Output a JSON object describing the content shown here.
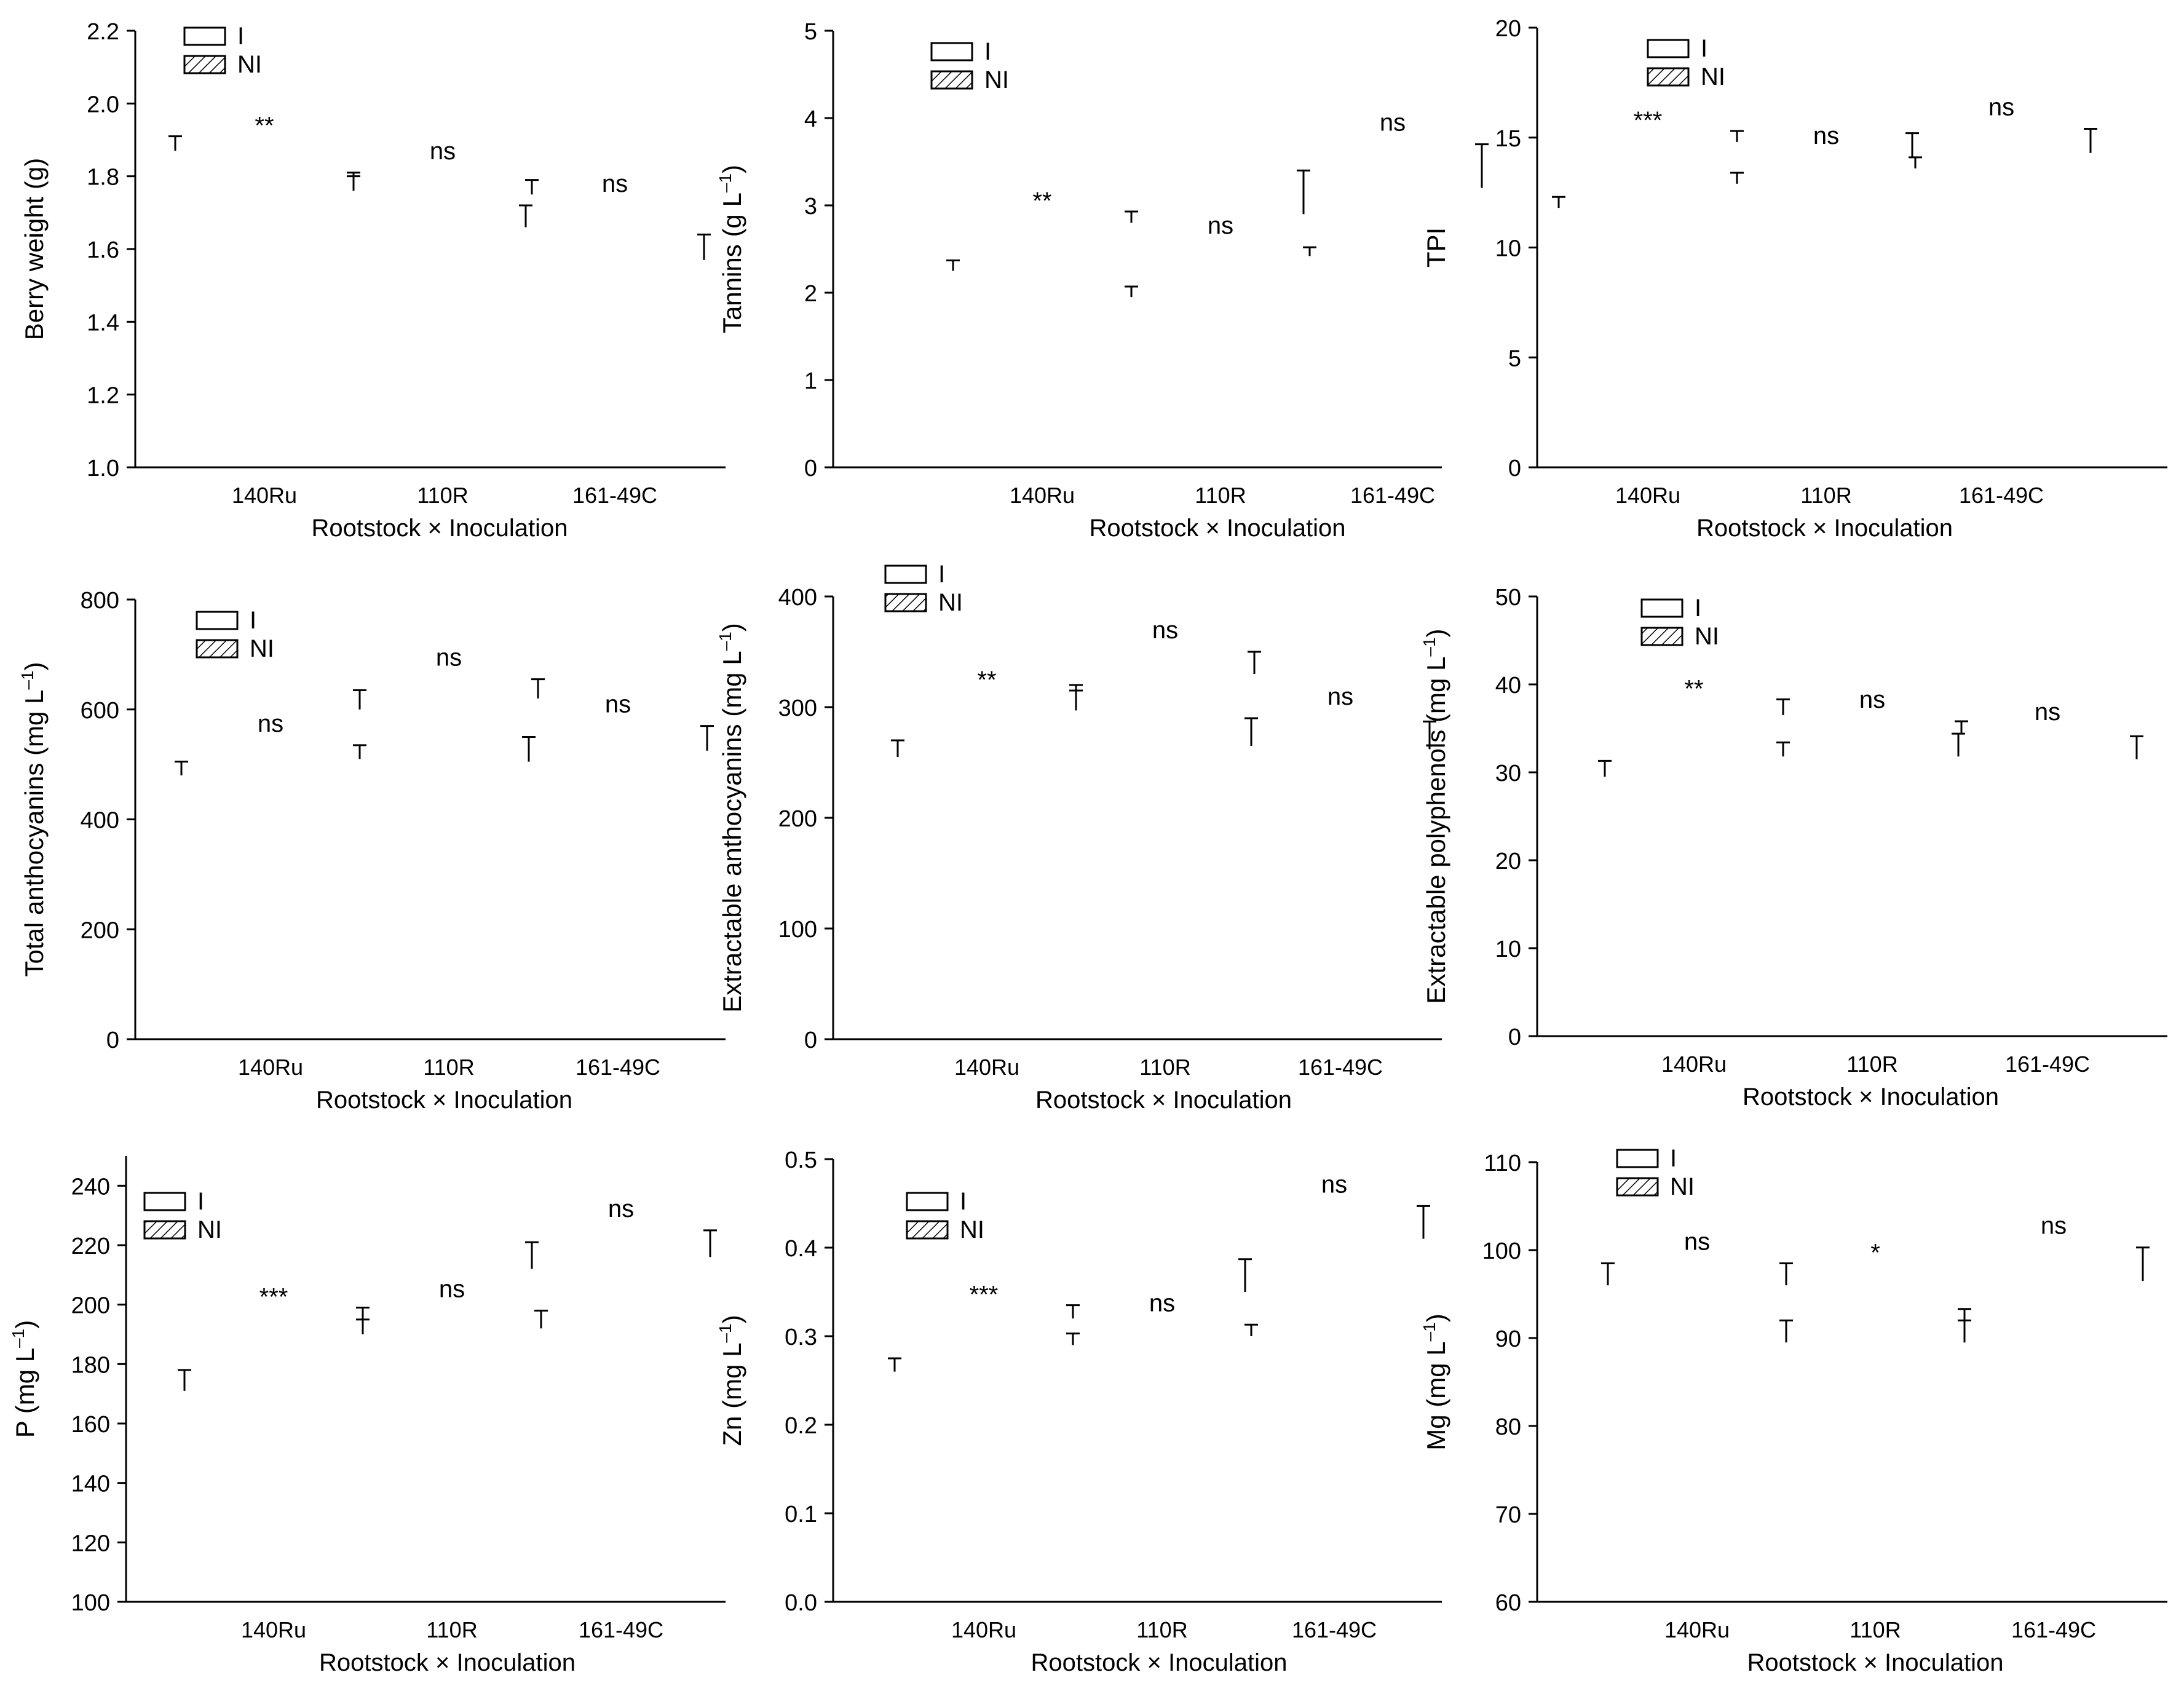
{
  "figure": {
    "background": "#ffffff",
    "ink": "#000000"
  },
  "legend": {
    "labels": [
      "I",
      "NI"
    ]
  },
  "chart_data": [
    {
      "type": "bar",
      "id": "berry-weight",
      "ylabel": "Berry weight (g)",
      "ylabel_sup": "",
      "xlabel": "Rootstock × Inoculation",
      "categories": [
        "140Ru",
        "110R",
        "161-49C"
      ],
      "ylim": [
        1.0,
        2.2
      ],
      "yticks": [
        1.0,
        1.2,
        1.4,
        1.6,
        1.8,
        2.0,
        2.2
      ],
      "tick_decimals": 1,
      "legend_location": "top-left",
      "series": [
        {
          "name": "I",
          "values": [
            1.87,
            1.77,
            1.66
          ],
          "errors": [
            0.04,
            0.04,
            0.06
          ]
        },
        {
          "name": "NI",
          "values": [
            1.76,
            1.75,
            1.57
          ],
          "errors": [
            0.04,
            0.04,
            0.07
          ]
        }
      ],
      "significance": [
        "**",
        "ns",
        "ns"
      ]
    },
    {
      "type": "bar",
      "id": "tannins",
      "ylabel": "Tannins (g L",
      "ylabel_sup": "–1",
      "xlabel": "Rootstock × Inoculation",
      "categories": [
        "140Ru",
        "110R",
        "161-49C"
      ],
      "ylim": [
        0,
        5
      ],
      "yticks": [
        0,
        1,
        2,
        3,
        4,
        5
      ],
      "tick_decimals": 0,
      "legend_location": "top-left",
      "series": [
        {
          "name": "I",
          "values": [
            2.25,
            1.95,
            2.9
          ],
          "errors": [
            0.12,
            0.12,
            0.5
          ]
        },
        {
          "name": "NI",
          "values": [
            2.8,
            2.42,
            3.2
          ],
          "errors": [
            0.13,
            0.1,
            0.5
          ]
        }
      ],
      "significance": [
        "**",
        "ns",
        "ns"
      ]
    },
    {
      "type": "bar",
      "id": "tpi",
      "ylabel": "TPI",
      "ylabel_sup": "",
      "xlabel": "Rootstock × Inoculation",
      "categories": [
        "140Ru",
        "110R",
        "161-49C"
      ],
      "ylim": [
        0,
        20
      ],
      "yticks": [
        0,
        5,
        10,
        15,
        20
      ],
      "tick_decimals": 0,
      "legend_location": "top-left",
      "series": [
        {
          "name": "I",
          "values": [
            11.8,
            12.9,
            14.1
          ],
          "errors": [
            0.5,
            0.5,
            1.1
          ]
        },
        {
          "name": "NI",
          "values": [
            14.8,
            13.6,
            14.3
          ],
          "errors": [
            0.5,
            0.5,
            1.1
          ]
        }
      ],
      "significance": [
        "***",
        "ns",
        "ns"
      ]
    },
    {
      "type": "bar",
      "id": "total-anthocyanins",
      "ylabel": "Total anthocyanins (mg L",
      "ylabel_sup": "–1",
      "xlabel": "Rootstock × Inoculation",
      "categories": [
        "140Ru",
        "110R",
        "161-49C"
      ],
      "ylim": [
        0,
        800
      ],
      "yticks": [
        0,
        200,
        400,
        600,
        800
      ],
      "tick_decimals": 0,
      "legend_location": "top-left",
      "series": [
        {
          "name": "I",
          "values": [
            480,
            600,
            505
          ],
          "errors": [
            25,
            35,
            45
          ]
        },
        {
          "name": "NI",
          "values": [
            510,
            620,
            525
          ],
          "errors": [
            25,
            35,
            45
          ]
        }
      ],
      "significance": [
        "ns",
        "ns",
        "ns"
      ]
    },
    {
      "type": "bar",
      "id": "extractable-anthocyanins",
      "ylabel": "Extractable anthocyanins (mg L",
      "ylabel_sup": "–1",
      "xlabel": "Rootstock × Inoculation",
      "categories": [
        "140Ru",
        "110R",
        "161-49C"
      ],
      "ylim": [
        0,
        400
      ],
      "yticks": [
        0,
        100,
        200,
        300,
        400
      ],
      "tick_decimals": 0,
      "legend_location": "top-left",
      "series": [
        {
          "name": "I",
          "values": [
            255,
            300,
            265
          ],
          "errors": [
            15,
            20,
            25
          ]
        },
        {
          "name": "NI",
          "values": [
            297,
            330,
            262
          ],
          "errors": [
            18,
            20,
            25
          ]
        }
      ],
      "significance": [
        "**",
        "ns",
        "ns"
      ]
    },
    {
      "type": "bar",
      "id": "extractable-polyphenols",
      "ylabel": "Extractable polyphenols (mg L",
      "ylabel_sup": "–1",
      "xlabel": "Rootstock × Inoculation",
      "categories": [
        "140Ru",
        "110R",
        "161-49C"
      ],
      "ylim": [
        0,
        50
      ],
      "yticks": [
        0,
        10,
        20,
        30,
        40,
        50
      ],
      "tick_decimals": 0,
      "legend_location": "top-left",
      "series": [
        {
          "name": "I",
          "values": [
            29.5,
            31.8,
            31.8
          ],
          "errors": [
            1.8,
            1.6,
            2.6
          ]
        },
        {
          "name": "NI",
          "values": [
            36.5,
            34.5,
            31.5
          ],
          "errors": [
            1.8,
            1.3,
            2.6
          ]
        }
      ],
      "significance": [
        "**",
        "ns",
        "ns"
      ]
    },
    {
      "type": "bar",
      "id": "p",
      "ylabel": "P (mg L",
      "ylabel_sup": "–1",
      "xlabel": "Rootstock × Inoculation",
      "categories": [
        "140Ru",
        "110R",
        "161-49C"
      ],
      "ylim": [
        100,
        250
      ],
      "yticks": [
        100,
        120,
        140,
        160,
        180,
        200,
        220,
        240
      ],
      "tick_decimals": 0,
      "legend_location": "top-left",
      "series": [
        {
          "name": "I",
          "values": [
            171,
            190,
            212
          ],
          "errors": [
            7,
            5,
            9
          ]
        },
        {
          "name": "NI",
          "values": [
            193,
            192,
            216
          ],
          "errors": [
            6,
            6,
            9
          ]
        }
      ],
      "significance": [
        "***",
        "ns",
        "ns"
      ]
    },
    {
      "type": "bar",
      "id": "zn",
      "ylabel": "Zn (mg L",
      "ylabel_sup": "–1",
      "xlabel": "Rootstock × Inoculation",
      "categories": [
        "140Ru",
        "110R",
        "161-49C"
      ],
      "ylim": [
        0.0,
        0.5
      ],
      "yticks": [
        0.0,
        0.1,
        0.2,
        0.3,
        0.4,
        0.5
      ],
      "tick_decimals": 1,
      "legend_location": "top-left",
      "series": [
        {
          "name": "I",
          "values": [
            0.26,
            0.29,
            0.35
          ],
          "errors": [
            0.015,
            0.013,
            0.037
          ]
        },
        {
          "name": "NI",
          "values": [
            0.32,
            0.3,
            0.41
          ],
          "errors": [
            0.015,
            0.013,
            0.037
          ]
        }
      ],
      "significance": [
        "***",
        "ns",
        "ns"
      ]
    },
    {
      "type": "bar",
      "id": "mg",
      "ylabel": "Mg (mg L",
      "ylabel_sup": "–1",
      "xlabel": "Rootstock × Inoculation",
      "categories": [
        "140Ru",
        "110R",
        "161-49C"
      ],
      "ylim": [
        60,
        110
      ],
      "yticks": [
        60,
        70,
        80,
        90,
        100,
        110
      ],
      "tick_decimals": 0,
      "legend_location": "top-left",
      "series": [
        {
          "name": "I",
          "values": [
            96,
            96,
            89.5
          ],
          "errors": [
            2.5,
            2.5,
            3.8
          ]
        },
        {
          "name": "NI",
          "values": [
            89.5,
            89.5,
            96.5
          ],
          "errors": [
            2.5,
            2.5,
            3.8
          ]
        }
      ],
      "significance": [
        "ns",
        "*",
        "ns"
      ]
    }
  ]
}
